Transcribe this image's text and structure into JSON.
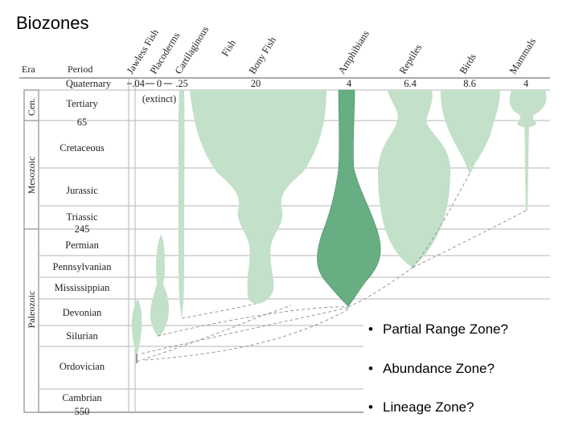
{
  "title": "Biozones",
  "columns": {
    "era": "Era",
    "period": "Period"
  },
  "eras": [
    {
      "name": "Cen."
    },
    {
      "name": "Mesozoic"
    },
    {
      "name": "Paleozoic"
    }
  ],
  "periods": [
    {
      "name": "Quaternary"
    },
    {
      "name": "Tertiary"
    },
    {
      "name": "65"
    },
    {
      "name": "Cretaceous"
    },
    {
      "name": "Jurassic"
    },
    {
      "name": "Triassic"
    },
    {
      "name": "245"
    },
    {
      "name": "Permian"
    },
    {
      "name": "Pennsylvanian"
    },
    {
      "name": "Mississippian"
    },
    {
      "name": "Devonian"
    },
    {
      "name": "Silurian"
    },
    {
      "name": "Ordovician"
    },
    {
      "name": "Cambrian"
    },
    {
      "name": "550"
    }
  ],
  "groups": [
    {
      "name": "Jawless Fish",
      "value": ".04"
    },
    {
      "name": "Placoderms",
      "value": "0"
    },
    {
      "name": "Cartilaginous Fish",
      "value": ".25"
    },
    {
      "name": "Bony Fish",
      "value": "20"
    },
    {
      "name": "Amphibians",
      "value": "4"
    },
    {
      "name": "Reptiles",
      "value": "6.4"
    },
    {
      "name": "Birds",
      "value": "8.6"
    },
    {
      "name": "Mammals",
      "value": "4"
    }
  ],
  "extinct_note": "(extinct)",
  "colors": {
    "light_green": "#c3e0c8",
    "dark_green": "#67ae83",
    "line": "#555555"
  },
  "bullets": [
    {
      "dot": "•",
      "text": "Partial Range Zone?"
    },
    {
      "dot": "•",
      "text": "Abundance Zone?"
    },
    {
      "dot": "•",
      "text": "Lineage Zone?"
    }
  ]
}
